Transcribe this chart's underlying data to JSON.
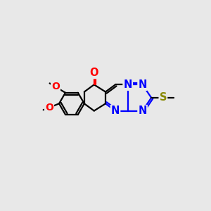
{
  "bg_color": "#e8e8e8",
  "bond_color": "#000000",
  "N_color": "#0000ff",
  "O_color": "#ff0000",
  "S_color": "#888800",
  "methoxy_color": "#ff0000",
  "bond_width": 1.6,
  "dbo": 0.055,
  "font_size": 10.5,
  "xlim": [
    -1.5,
    3.5
  ],
  "ylim": [
    -1.3,
    1.6
  ]
}
